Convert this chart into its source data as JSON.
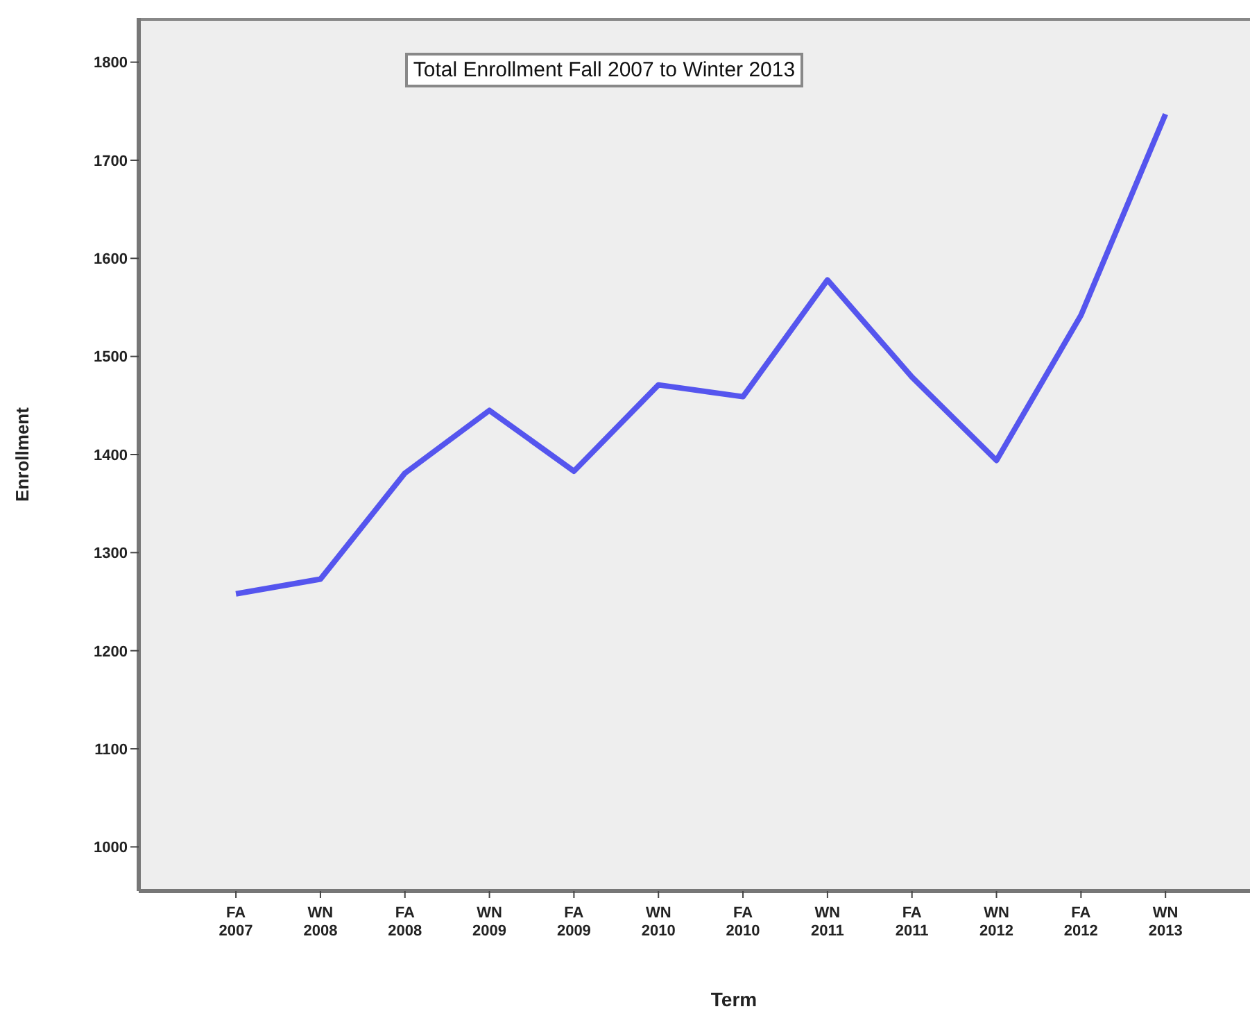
{
  "chart_data": {
    "type": "line",
    "title": "Total Enrollment Fall 2007 to Winter 2013",
    "xlabel": "Term",
    "ylabel": "Enrollment",
    "categories": [
      "FA 2007",
      "WN 2008",
      "FA 2008",
      "WN 2009",
      "FA 2009",
      "WN 2010",
      "FA 2010",
      "WN 2011",
      "FA 2011",
      "WN 2012",
      "FA 2012",
      "WN 2013"
    ],
    "series": [
      {
        "color": "#5555ee",
        "values": [
          1258,
          1273,
          1381,
          1445,
          1383,
          1471,
          1459,
          1578,
          1479,
          1394,
          1542,
          1747
        ]
      }
    ],
    "ylim": [
      955,
      1845
    ],
    "yticks": [
      1000,
      1100,
      1200,
      1300,
      1400,
      1500,
      1600,
      1700,
      1800
    ],
    "marker": "none",
    "line_style": "solid"
  }
}
